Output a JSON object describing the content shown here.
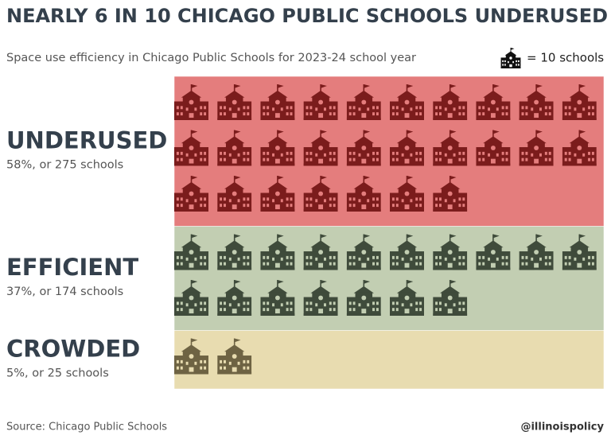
{
  "chart_data": {
    "type": "pictogram",
    "title": "NEARLY 6 IN 10 CHICAGO PUBLIC SCHOOLS UNDERUSED",
    "subtitle": "Space use efficiency in Chicago Public Schools for 2023-24 school year",
    "unit": 10,
    "unit_label": "= 10 schools",
    "categories": [
      "UNDERUSED",
      "EFFICIENT",
      "CROWDED"
    ],
    "values": [
      275,
      174,
      25
    ],
    "value_labels": [
      "58%, or 275 schools",
      "37%, or 174 schools",
      "5%, or 25 schools"
    ],
    "colors": [
      "#7b1c1c",
      "#3f4b3b",
      "#6e6343"
    ],
    "background_colors": [
      "#e47d7d",
      "#c2ceb2",
      "#e8dcb0"
    ],
    "source": "Source: Chicago Public Schools",
    "credit": "@illinoispolicy"
  }
}
